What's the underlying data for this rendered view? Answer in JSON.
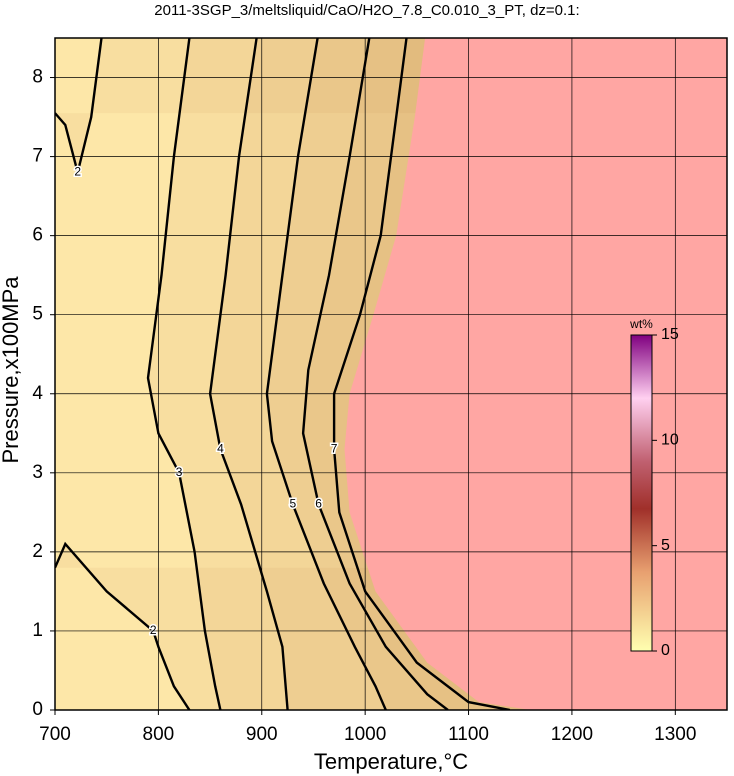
{
  "chart_data": {
    "type": "contour",
    "title": "2011-3SGP_3/meltsliquid/CaO/H2O_7.8_C0.010_3_PT, dz=0.1:",
    "xlabel": "Temperature,°C",
    "ylabel": "Pressure,x100MPa",
    "xlim": [
      700,
      1350
    ],
    "xticks": [
      700,
      800,
      900,
      1000,
      1100,
      1200,
      1300
    ],
    "ylim": [
      0,
      8.5
    ],
    "yticks": [
      0,
      1,
      2,
      3,
      4,
      5,
      6,
      7,
      8
    ],
    "grid": true,
    "line_color": "#000000",
    "saturated_color": "#ffa6a3",
    "contours": [
      {
        "level": 2,
        "x": [
          745,
          735,
          722,
          710,
          700,
          null,
          700,
          710,
          750,
          795,
          800,
          815,
          830
        ],
        "y": [
          8.5,
          7.5,
          6.8,
          7.4,
          7.55,
          null,
          1.8,
          2.1,
          1.5,
          1.0,
          0.8,
          0.3,
          0
        ]
      },
      {
        "level": 3,
        "x": [
          830,
          815,
          803,
          790,
          800,
          820,
          835,
          845,
          855,
          860
        ],
        "y": [
          8.5,
          7,
          5.5,
          4.2,
          3.5,
          3.0,
          2,
          1,
          0.3,
          0
        ]
      },
      {
        "level": 4,
        "x": [
          895,
          878,
          865,
          850,
          860,
          880,
          905,
          920,
          925
        ],
        "y": [
          8.5,
          7,
          5.5,
          4.0,
          3.3,
          2.6,
          1.5,
          0.8,
          0
        ]
      },
      {
        "level": 5,
        "x": [
          954,
          935,
          920,
          905,
          910,
          930,
          960,
          990,
          1010,
          1020
        ],
        "y": [
          8.5,
          7,
          5.5,
          4.0,
          3.4,
          2.6,
          1.6,
          0.8,
          0.3,
          0
        ]
      },
      {
        "level": 6,
        "x": [
          1004,
          985,
          965,
          945,
          940,
          955,
          985,
          1020,
          1060,
          1080
        ],
        "y": [
          8.5,
          7,
          5.5,
          4.3,
          3.5,
          2.6,
          1.6,
          0.8,
          0.2,
          0
        ]
      },
      {
        "level": 7,
        "x": [
          1040,
          1030,
          1015,
          995,
          970,
          970,
          975,
          1000,
          1050,
          1100,
          1140
        ],
        "y": [
          8.5,
          7.5,
          6,
          5,
          4,
          3.3,
          2.5,
          1.5,
          0.6,
          0.1,
          0
        ]
      }
    ],
    "saturation": {
      "x": [
        1058,
        1048,
        1030,
        1008,
        985,
        980,
        985,
        1010,
        1060,
        1110,
        1160
      ],
      "y": [
        8.5,
        7.5,
        6,
        5,
        4,
        3.3,
        2.5,
        1.5,
        0.6,
        0.1,
        0
      ]
    },
    "colorbar": {
      "label": "wt%",
      "lim": [
        0,
        15
      ],
      "ticks": [
        0,
        5,
        10,
        15
      ]
    }
  }
}
